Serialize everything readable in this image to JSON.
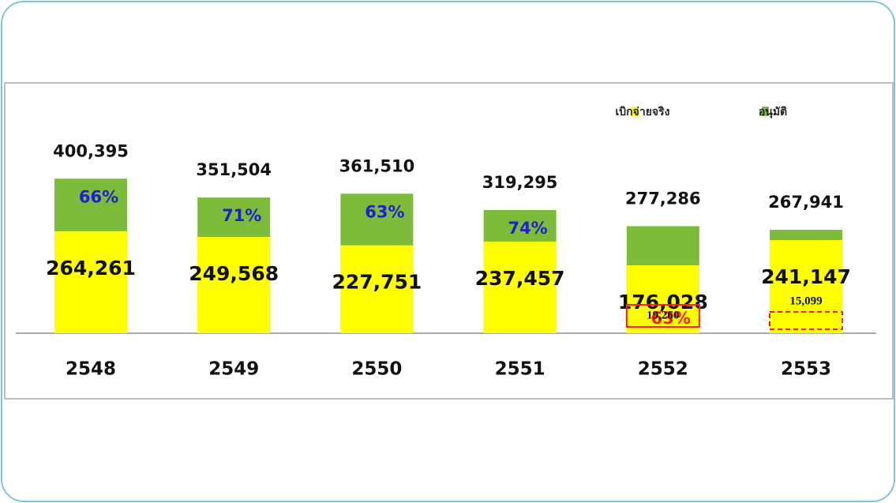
{
  "chart_data": {
    "type": "bar",
    "categories": [
      "2548",
      "2549",
      "2550",
      "2551",
      "2552",
      "2553"
    ],
    "series": [
      {
        "name": "อนุมัติ",
        "color": "#7dbb3a",
        "values": [
          400395,
          351504,
          361510,
          319295,
          277286,
          267941
        ],
        "value_labels": [
          "400,395",
          "351,504",
          "361,510",
          "319,295",
          "277,286",
          "267,941"
        ]
      },
      {
        "name": "เบิกจ่ายจริง",
        "color": "#ffff00",
        "values": [
          264261,
          249568,
          227751,
          237457,
          176028,
          241147
        ],
        "value_labels": [
          "264,261",
          "249,568",
          "227,751",
          "237,457",
          "176,028",
          "241,147"
        ]
      }
    ],
    "share_labels": [
      "66%",
      "71%",
      "63%",
      "74%",
      "63%",
      null
    ],
    "share_colors": [
      "#1f1fd0",
      "#1f1fd0",
      "#1f1fd0",
      "#1f1fd0",
      "#ff1a1a",
      null
    ],
    "boxed_values": [
      null,
      null,
      null,
      null,
      19260,
      15099
    ],
    "boxed_labels": [
      null,
      null,
      null,
      null,
      "19,260",
      "15,099"
    ],
    "boxed_styles": [
      null,
      null,
      null,
      null,
      "solid",
      "dashed"
    ],
    "ylim": [
      0,
      450000
    ],
    "legend": "top-right"
  }
}
